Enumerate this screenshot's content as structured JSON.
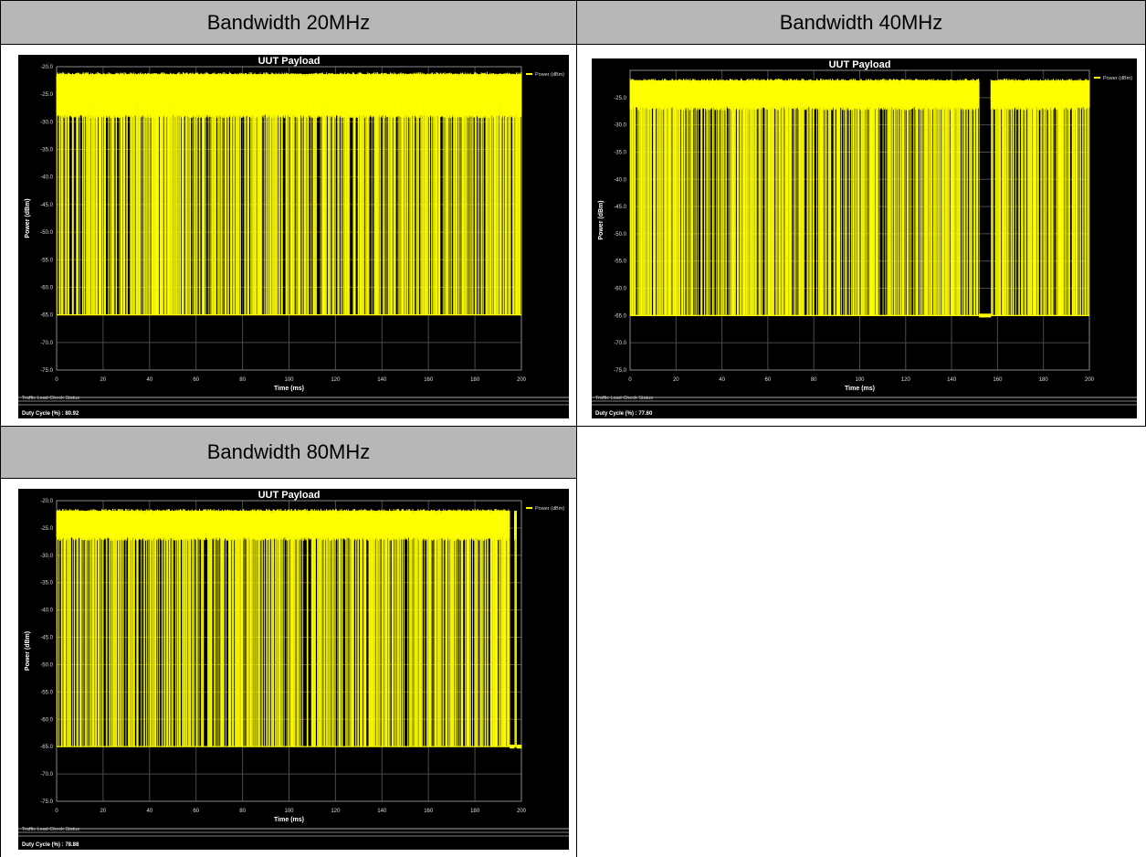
{
  "table": {
    "headers": [
      "Bandwidth 20MHz",
      "Bandwidth 40MHz",
      "Bandwidth 80MHz"
    ]
  },
  "colors": {
    "trace": "#ffff00",
    "background": "#000000",
    "header_bg": "#b7b7b7",
    "grid": "#4a4a4a"
  },
  "chart_data": [
    {
      "type": "line",
      "title": "UUT Payload",
      "xlabel": "Time (ms)",
      "ylabel": "Power (dBm)",
      "xlim": [
        0,
        200
      ],
      "ylim": [
        -75,
        -20
      ],
      "xticks": [
        "0",
        "20",
        "40",
        "60",
        "80",
        "100",
        "120",
        "140",
        "160",
        "180",
        "200"
      ],
      "yticks": [
        "-20.0",
        "-25.0",
        "-30.0",
        "-35.0",
        "-40.0",
        "-45.0",
        "-50.0",
        "-55.0",
        "-60.0",
        "-65.0",
        "-70.0",
        "-75.0"
      ],
      "legend": "top-right",
      "grid": true,
      "series": [
        {
          "name": "Power (dBm)",
          "high": -21.5,
          "shoulder": -29.0,
          "floor": -65.0,
          "active": [
            [
              0,
              200
            ]
          ]
        }
      ],
      "status_title": "Traffic Load Check Status",
      "duty_cycle": "Duty Cycle (%) : 80.92"
    },
    {
      "type": "line",
      "title": "UUT Payload",
      "xlabel": "Time (ms)",
      "ylabel": "Power (dBm)",
      "xlim": [
        0,
        200
      ],
      "ylim": [
        -75,
        -20
      ],
      "xticks": [
        "0",
        "20",
        "40",
        "60",
        "80",
        "100",
        "120",
        "140",
        "160",
        "180",
        "200"
      ],
      "yticks": [
        "-25.0",
        "-30.0",
        "-35.0",
        "-40.0",
        "-45.0",
        "-50.0",
        "-55.0",
        "-60.0",
        "-65.0",
        "-70.0",
        "-75.0"
      ],
      "legend": "top-right",
      "grid": true,
      "series": [
        {
          "name": "Power (dBm)",
          "high": -22.0,
          "shoulder": -27.0,
          "floor": -65.0,
          "active": [
            [
              0,
              152
            ],
            [
              157,
              200
            ]
          ]
        }
      ],
      "status_title": "Traffic Load Check Status",
      "duty_cycle": "Duty Cycle (%) : 77.60"
    },
    {
      "type": "line",
      "title": "UUT Payload",
      "xlabel": "Time (ms)",
      "ylabel": "Power (dBm)",
      "xlim": [
        0,
        200
      ],
      "ylim": [
        -75,
        -20
      ],
      "xticks": [
        "0",
        "20",
        "40",
        "60",
        "80",
        "100",
        "120",
        "140",
        "160",
        "180",
        "200"
      ],
      "yticks": [
        "-20.0",
        "-25.0",
        "-30.0",
        "-35.0",
        "-40.0",
        "-45.0",
        "-50.0",
        "-55.0",
        "-60.0",
        "-65.0",
        "-70.0",
        "-75.0"
      ],
      "legend": "top-right",
      "grid": true,
      "series": [
        {
          "name": "Power (dBm)",
          "high": -22.0,
          "shoulder": -27.0,
          "floor": -65.0,
          "active": [
            [
              0,
              195
            ],
            [
              197,
              198
            ]
          ]
        }
      ],
      "status_title": "Traffic Load Check Status",
      "duty_cycle": "Duty Cycle (%) : 78.88"
    }
  ]
}
